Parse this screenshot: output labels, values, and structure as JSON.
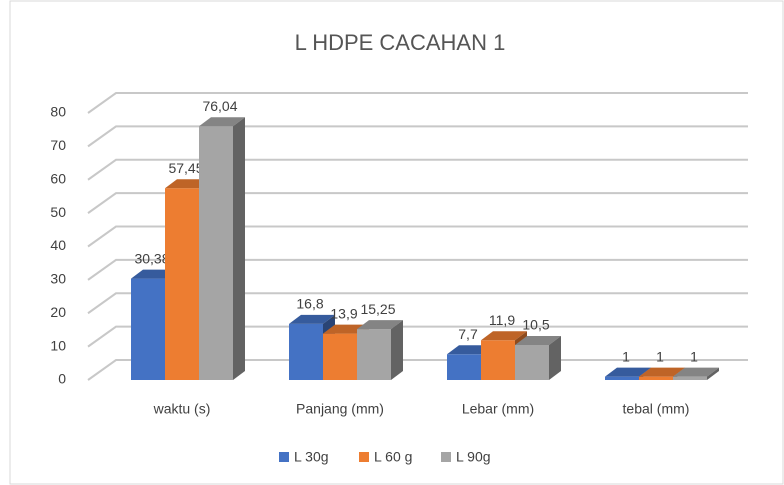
{
  "chart_data": {
    "type": "bar3d",
    "title": "L HDPE CACAHAN 1",
    "categories": [
      "waktu (s)",
      "Panjang (mm)",
      "Lebar (mm)",
      "tebal (mm)"
    ],
    "series": [
      {
        "name": "L 30g",
        "color": "#4472c4",
        "values": [
          30.38,
          16.8,
          7.7,
          1
        ],
        "value_labels": [
          "30,38",
          "16,8",
          "7,7",
          "1"
        ]
      },
      {
        "name": "L 60 g",
        "color": "#ed7d31",
        "values": [
          57.45,
          13.9,
          11.9,
          1
        ],
        "value_labels": [
          "57,45",
          "13,9",
          "11,9",
          "1"
        ]
      },
      {
        "name": "L 90g",
        "color": "#a5a5a5",
        "values": [
          76.04,
          15.25,
          10.5,
          1
        ],
        "value_labels": [
          "76,04",
          "15,25",
          "10,5",
          "1"
        ]
      }
    ],
    "ylim": [
      0,
      80
    ],
    "yticks": [
      0,
      10,
      20,
      30,
      40,
      50,
      60,
      70,
      80
    ],
    "grid": true,
    "legend": "bottom"
  }
}
